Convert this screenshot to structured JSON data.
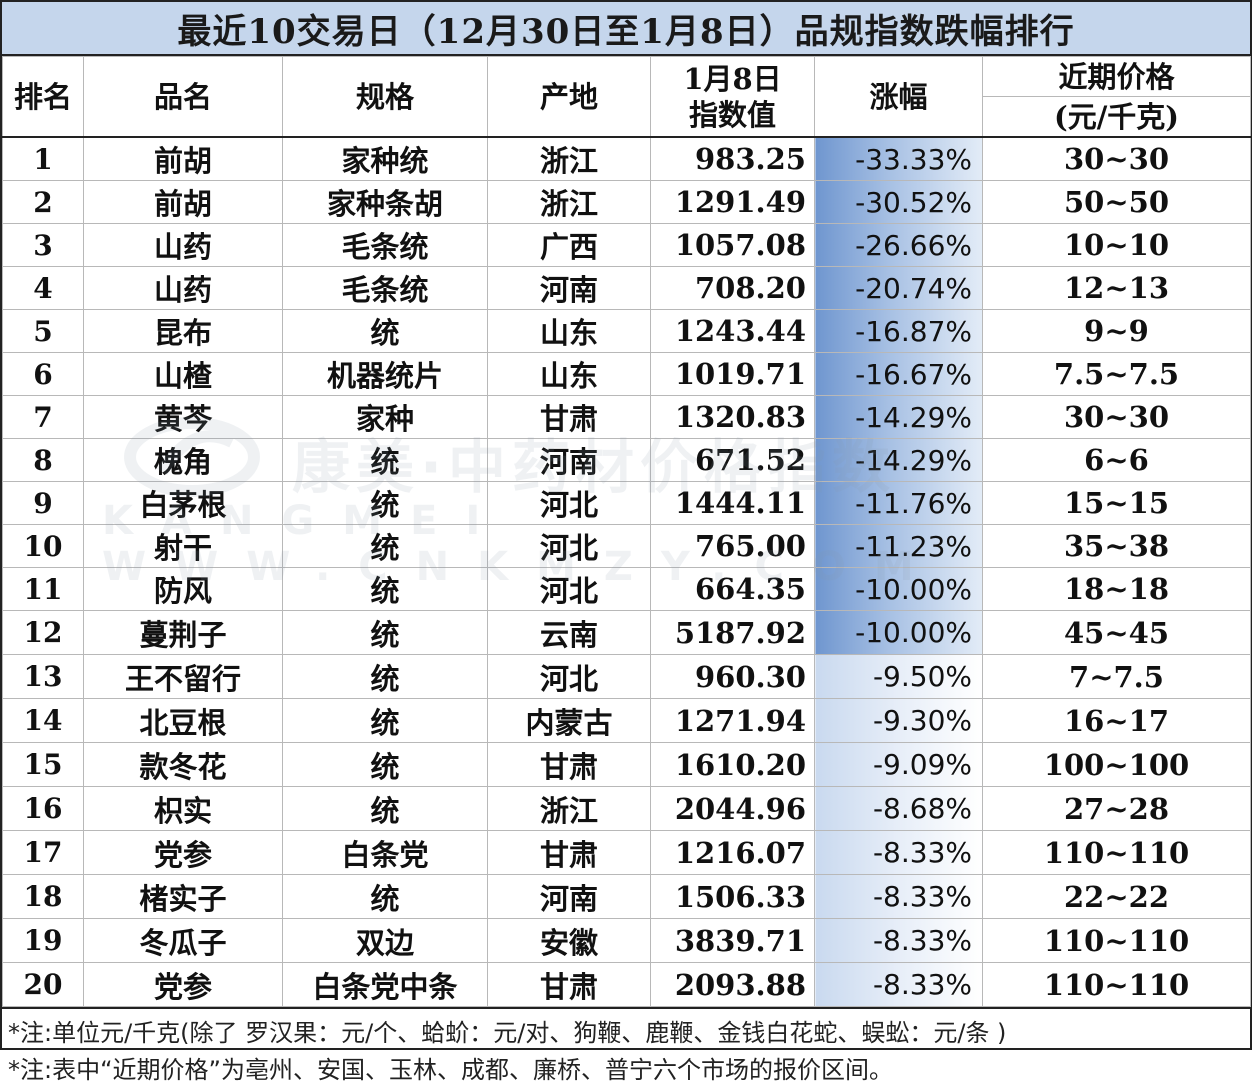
{
  "title": "最近10交易日（12月30日至1月8日）品规指数跌幅排行",
  "headers": {
    "rank": "排名",
    "name": "品名",
    "spec": "规格",
    "origin": "产地",
    "index_line1": "1月8日",
    "index_line2": "指数值",
    "change": "涨幅",
    "price_line1": "近期价格",
    "price_line2": "(元/千克)"
  },
  "rows": [
    {
      "rank": "1",
      "name": "前胡",
      "spec": "家种统",
      "origin": "浙江",
      "index": "983.25",
      "change": "-33.33%",
      "price": "30~30"
    },
    {
      "rank": "2",
      "name": "前胡",
      "spec": "家种条胡",
      "origin": "浙江",
      "index": "1291.49",
      "change": "-30.52%",
      "price": "50~50"
    },
    {
      "rank": "3",
      "name": "山药",
      "spec": "毛条统",
      "origin": "广西",
      "index": "1057.08",
      "change": "-26.66%",
      "price": "10~10"
    },
    {
      "rank": "4",
      "name": "山药",
      "spec": "毛条统",
      "origin": "河南",
      "index": "708.20",
      "change": "-20.74%",
      "price": "12~13"
    },
    {
      "rank": "5",
      "name": "昆布",
      "spec": "统",
      "origin": "山东",
      "index": "1243.44",
      "change": "-16.87%",
      "price": "9~9"
    },
    {
      "rank": "6",
      "name": "山楂",
      "spec": "机器统片",
      "origin": "山东",
      "index": "1019.71",
      "change": "-16.67%",
      "price": "7.5~7.5"
    },
    {
      "rank": "7",
      "name": "黄芩",
      "spec": "家种",
      "origin": "甘肃",
      "index": "1320.83",
      "change": "-14.29%",
      "price": "30~30"
    },
    {
      "rank": "8",
      "name": "槐角",
      "spec": "统",
      "origin": "河南",
      "index": "671.52",
      "change": "-14.29%",
      "price": "6~6"
    },
    {
      "rank": "9",
      "name": "白茅根",
      "spec": "统",
      "origin": "河北",
      "index": "1444.11",
      "change": "-11.76%",
      "price": "15~15"
    },
    {
      "rank": "10",
      "name": "射干",
      "spec": "统",
      "origin": "河北",
      "index": "765.00",
      "change": "-11.23%",
      "price": "35~38"
    },
    {
      "rank": "11",
      "name": "防风",
      "spec": "统",
      "origin": "河北",
      "index": "664.35",
      "change": "-10.00%",
      "price": "18~18"
    },
    {
      "rank": "12",
      "name": "蔓荆子",
      "spec": "统",
      "origin": "云南",
      "index": "5187.92",
      "change": "-10.00%",
      "price": "45~45"
    },
    {
      "rank": "13",
      "name": "王不留行",
      "spec": "统",
      "origin": "河北",
      "index": "960.30",
      "change": "-9.50%",
      "price": "7~7.5"
    },
    {
      "rank": "14",
      "name": "北豆根",
      "spec": "统",
      "origin": "内蒙古",
      "index": "1271.94",
      "change": "-9.30%",
      "price": "16~17"
    },
    {
      "rank": "15",
      "name": "款冬花",
      "spec": "统",
      "origin": "甘肃",
      "index": "1610.20",
      "change": "-9.09%",
      "price": "100~100"
    },
    {
      "rank": "16",
      "name": "枳实",
      "spec": "统",
      "origin": "浙江",
      "index": "2044.96",
      "change": "-8.68%",
      "price": "27~28"
    },
    {
      "rank": "17",
      "name": "党参",
      "spec": "白条党",
      "origin": "甘肃",
      "index": "1216.07",
      "change": "-8.33%",
      "price": "110~110"
    },
    {
      "rank": "18",
      "name": "楮实子",
      "spec": "统",
      "origin": "河南",
      "index": "1506.33",
      "change": "-8.33%",
      "price": "22~22"
    },
    {
      "rank": "19",
      "name": "冬瓜子",
      "spec": "双边",
      "origin": "安徽",
      "index": "3839.71",
      "change": "-8.33%",
      "price": "110~110"
    },
    {
      "rank": "20",
      "name": "党参",
      "spec": "白条党中条",
      "origin": "甘肃",
      "index": "2093.88",
      "change": "-8.33%",
      "price": "110~110"
    }
  ],
  "notes": [
    "*注:单位元/千克(除了 罗汉果：元/个、蛤蚧：元/对、狗鞭、鹿鞭、金钱白花蛇、蜈蚣：元/条 )",
    "*注:表中“近期价格”为亳州、安国、玉林、成都、廉桥、普宁六个市场的报价区间。"
  ],
  "watermark": {
    "text": "康美·中药材价格指数",
    "url": "KANGMEI WWW.CNKMZY.COM"
  },
  "colors": {
    "title_bg": "#c5d6ec",
    "change_bar": "#6f96cf"
  }
}
